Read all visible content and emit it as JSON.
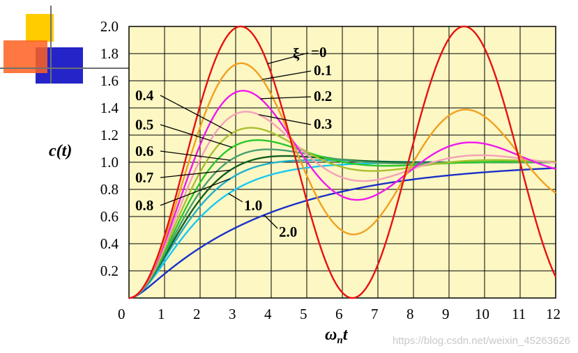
{
  "chart_data": {
    "type": "line",
    "xlabel_symbol": "ω",
    "xlabel_subscript": "n",
    "xlabel_suffix": "t",
    "ylabel_prefix": "c(",
    "ylabel_var": "t",
    "ylabel_suffix": ")",
    "xlim": [
      0,
      12
    ],
    "ylim": [
      0,
      2.0
    ],
    "x_ticks": [
      "0",
      "1",
      "2",
      "3",
      "4",
      "5",
      "6",
      "7",
      "8",
      "9",
      "10",
      "11",
      "12"
    ],
    "y_ticks": [
      "0.2",
      "0.4",
      "0.6",
      "0.8",
      "1.0",
      "1.2",
      "1.4",
      "1.6",
      "1.8",
      "2.0"
    ],
    "grid": true,
    "background_color": "#fdf7c3",
    "param_symbol": "ξ",
    "series": [
      {
        "name": "=0",
        "zeta": 0.0,
        "color": "#e81010"
      },
      {
        "name": "0.1",
        "zeta": 0.1,
        "color": "#f0a020"
      },
      {
        "name": "0.2",
        "zeta": 0.2,
        "color": "#ef18ef"
      },
      {
        "name": "0.3",
        "zeta": 0.3,
        "color": "#f4a0b8"
      },
      {
        "name": "0.4",
        "zeta": 0.4,
        "color": "#a8c030"
      },
      {
        "name": "0.5",
        "zeta": 0.5,
        "color": "#28c828"
      },
      {
        "name": "0.6",
        "zeta": 0.6,
        "color": "#48a070"
      },
      {
        "name": "0.7",
        "zeta": 0.7,
        "color": "#106020"
      },
      {
        "name": "0.8",
        "zeta": 0.8,
        "color": "#1fb0c8"
      },
      {
        "name": "1.0",
        "zeta": 1.0,
        "color": "#18c8f0"
      },
      {
        "name": "2.0",
        "zeta": 2.0,
        "color": "#1a30c8"
      }
    ]
  },
  "watermark": "https://blog.csdn.net/weixin_45263626",
  "decor_colors": {
    "yellow": "#ffcc00",
    "blue": "#2424c8",
    "orange": "#ff6020",
    "line": "#707070"
  }
}
